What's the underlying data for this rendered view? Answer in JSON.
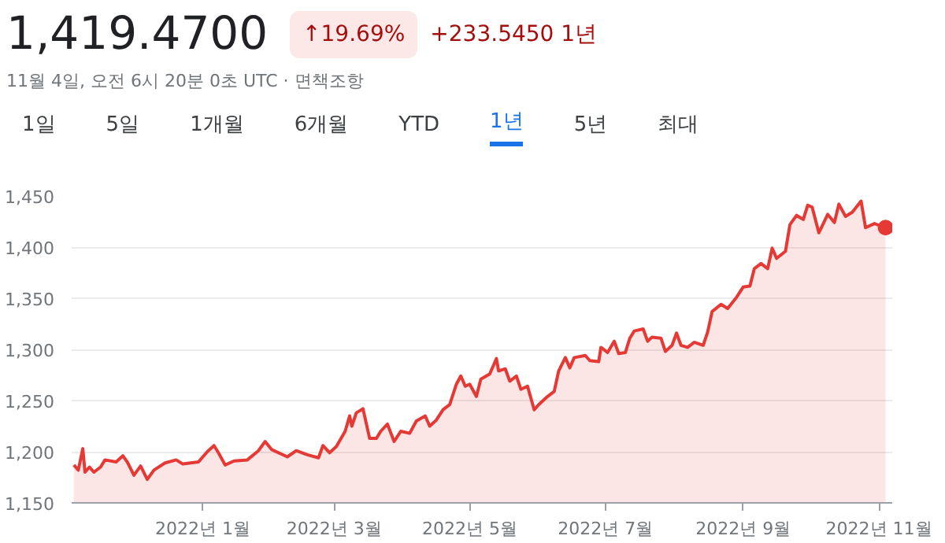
{
  "chart_data": {
    "type": "area",
    "title": "1,419.4700",
    "subtitle": "11월 4일, 오전 6시 20분 0초 UTC · 면책조항",
    "annotations": [
      "↑19.69%",
      "+233.5450 1년",
      "1일",
      "5일",
      "1개월",
      "6개월",
      "YTD",
      "1년",
      "5년",
      "최대"
    ],
    "x": [
      "2021-11-04",
      "2021-11-06",
      "2021-11-08",
      "2021-11-09",
      "2021-11-11",
      "2021-11-13",
      "2021-11-16",
      "2021-11-18",
      "2021-11-23",
      "2021-11-26",
      "2021-11-28",
      "2021-12-01",
      "2021-12-04",
      "2021-12-07",
      "2021-12-10",
      "2021-12-15",
      "2021-12-20",
      "2021-12-23",
      "2021-12-30",
      "2022-01-03",
      "2022-01-06",
      "2022-01-08",
      "2022-01-11",
      "2022-01-15",
      "2022-01-21",
      "2022-01-26",
      "2022-01-29",
      "2022-02-01",
      "2022-02-08",
      "2022-02-12",
      "2022-02-17",
      "2022-02-22",
      "2022-02-24",
      "2022-02-27",
      "2022-03-02",
      "2022-03-06",
      "2022-03-08",
      "2022-03-09",
      "2022-03-11",
      "2022-03-14",
      "2022-03-17",
      "2022-03-20",
      "2022-03-22",
      "2022-03-25",
      "2022-03-28",
      "2022-03-31",
      "2022-04-04",
      "2022-04-07",
      "2022-04-11",
      "2022-04-13",
      "2022-04-16",
      "2022-04-19",
      "2022-04-22",
      "2022-04-25",
      "2022-04-27",
      "2022-04-29",
      "2022-05-01",
      "2022-05-04",
      "2022-05-06",
      "2022-05-10",
      "2022-05-13",
      "2022-05-14",
      "2022-05-17",
      "2022-05-19",
      "2022-05-22",
      "2022-05-24",
      "2022-05-27",
      "2022-05-30",
      "2022-06-01",
      "2022-06-05",
      "2022-06-08",
      "2022-06-10",
      "2022-06-13",
      "2022-06-15",
      "2022-06-17",
      "2022-06-22",
      "2022-06-24",
      "2022-06-28",
      "2022-06-29",
      "2022-07-02",
      "2022-07-05",
      "2022-07-07",
      "2022-07-10",
      "2022-07-12",
      "2022-07-14",
      "2022-07-18",
      "2022-07-20",
      "2022-07-22",
      "2022-07-26",
      "2022-07-28",
      "2022-07-31",
      "2022-08-02",
      "2022-08-04",
      "2022-08-07",
      "2022-08-10",
      "2022-08-14",
      "2022-08-16",
      "2022-08-18",
      "2022-08-22",
      "2022-08-25",
      "2022-08-29",
      "2022-09-01",
      "2022-09-04",
      "2022-09-06",
      "2022-09-09",
      "2022-09-12",
      "2022-09-14",
      "2022-09-16",
      "2022-09-20",
      "2022-09-22",
      "2022-09-25",
      "2022-09-28",
      "2022-09-30",
      "2022-10-02",
      "2022-10-05",
      "2022-10-07",
      "2022-10-09",
      "2022-10-12",
      "2022-10-14",
      "2022-10-17",
      "2022-10-20",
      "2022-10-24",
      "2022-10-26",
      "2022-10-30",
      "2022-11-04"
    ],
    "series": [
      {
        "color": "#e53935",
        "values": [
          1187,
          1182,
          1203,
          1180,
          1185,
          1180,
          1185,
          1192,
          1190,
          1196,
          1190,
          1177,
          1186,
          1173,
          1182,
          1189,
          1192,
          1188,
          1190,
          1200,
          1206,
          1199,
          1187,
          1191,
          1192,
          1201,
          1210,
          1202,
          1195,
          1201,
          1197,
          1194,
          1206,
          1199,
          1205,
          1220,
          1235,
          1225,
          1238,
          1242,
          1213,
          1213,
          1220,
          1227,
          1210,
          1220,
          1218,
          1230,
          1235,
          1225,
          1231,
          1241,
          1246,
          1266,
          1274,
          1264,
          1266,
          1254,
          1271,
          1276,
          1291,
          1279,
          1281,
          1269,
          1274,
          1261,
          1264,
          1241,
          1246,
          1254,
          1259,
          1279,
          1292,
          1282,
          1292,
          1294,
          1289,
          1288,
          1302,
          1297,
          1308,
          1296,
          1297,
          1311,
          1318,
          1320,
          1308,
          1312,
          1311,
          1298,
          1304,
          1316,
          1304,
          1302,
          1307,
          1304,
          1317,
          1337,
          1344,
          1340,
          1351,
          1361,
          1362,
          1379,
          1384,
          1379,
          1399,
          1389,
          1396,
          1422,
          1431,
          1427,
          1441,
          1439,
          1414,
          1423,
          1432,
          1424,
          1442,
          1430,
          1434,
          1445,
          1419,
          1423,
          1419
        ]
      }
    ],
    "xlim": [
      "2021-11-03",
      "2022-11-07"
    ],
    "xticks": [
      {
        "value": "2022-01-01",
        "label": "2022년 1월"
      },
      {
        "value": "2022-03-01",
        "label": "2022년 3월"
      },
      {
        "value": "2022-05-01",
        "label": "2022년 5월"
      },
      {
        "value": "2022-07-01",
        "label": "2022년 7월"
      },
      {
        "value": "2022-09-01",
        "label": "2022년 9월"
      },
      {
        "value": "2022-11-01",
        "label": "2022년 11월"
      }
    ],
    "ylim": [
      1150,
      1450
    ],
    "yticks": [
      {
        "value": 1150,
        "label": "1,150"
      },
      {
        "value": 1200,
        "label": "1,200"
      },
      {
        "value": 1250,
        "label": "1,250"
      },
      {
        "value": 1300,
        "label": "1,300"
      },
      {
        "value": 1350,
        "label": "1,350"
      },
      {
        "value": 1400,
        "label": "1,400"
      },
      {
        "value": 1450,
        "label": "1,450"
      }
    ],
    "grid": "y"
  }
}
